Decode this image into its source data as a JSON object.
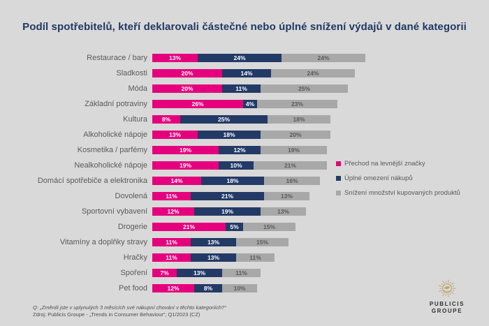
{
  "title": "Podíl spotřebitelů, kteří deklarovali částečné nebo úplné snížení výdajů v dané kategorii",
  "chart_data": {
    "type": "bar",
    "stacked": true,
    "orientation": "horizontal",
    "unit": "%",
    "value_label_format": "{v}%",
    "legend_position": "right",
    "xlim": [
      0,
      61
    ],
    "categories": [
      "Restaurace / bary",
      "Sladkosti",
      "Móda",
      "Základní potraviny",
      "Kultura",
      "Alkoholické nápoje",
      "Kosmetika / parfémy",
      "Nealkoholické nápoje",
      "Domácí spotřebiče a elektronika",
      "Dovolená",
      "Sportovní vybavení",
      "Drogerie",
      "Vitamíny a doplňky stravy",
      "Hračky",
      "Spoření",
      "Pet food"
    ],
    "series": [
      {
        "name": "Přechod na levnější značky",
        "color": "#e5007d",
        "values": [
          13,
          20,
          20,
          26,
          8,
          13,
          19,
          19,
          14,
          11,
          12,
          21,
          11,
          11,
          7,
          12
        ]
      },
      {
        "name": "Úplné omezení nákupů",
        "color": "#233a66",
        "values": [
          24,
          14,
          11,
          4,
          25,
          18,
          12,
          10,
          18,
          21,
          19,
          5,
          13,
          13,
          13,
          8
        ]
      },
      {
        "name": "Snížení množství kupovaných produktů",
        "color": "#a8a8a8",
        "values": [
          24,
          24,
          25,
          23,
          18,
          20,
          19,
          21,
          16,
          13,
          13,
          15,
          15,
          11,
          11,
          10
        ]
      }
    ]
  },
  "footer": {
    "question": "Q: „Změnili jste v uplynulých 3 měsících své nákupní chování v těchto kategoriích?“",
    "source": "Zdroj: Publicis Groupe - „Trends in Consumer Behaviour“; Q1/2023 (CZ)"
  },
  "logo": {
    "emblem": "lion-sun-icon",
    "emblem_color": "#c2a26b",
    "line1": "PUBLICIS",
    "line2": "GROUPE"
  },
  "colors": {
    "background": "#d9d9d9",
    "title": "#203864",
    "category_label": "#595959",
    "gray_segment_label": "#595959",
    "footer_text": "#4d4d4d"
  }
}
